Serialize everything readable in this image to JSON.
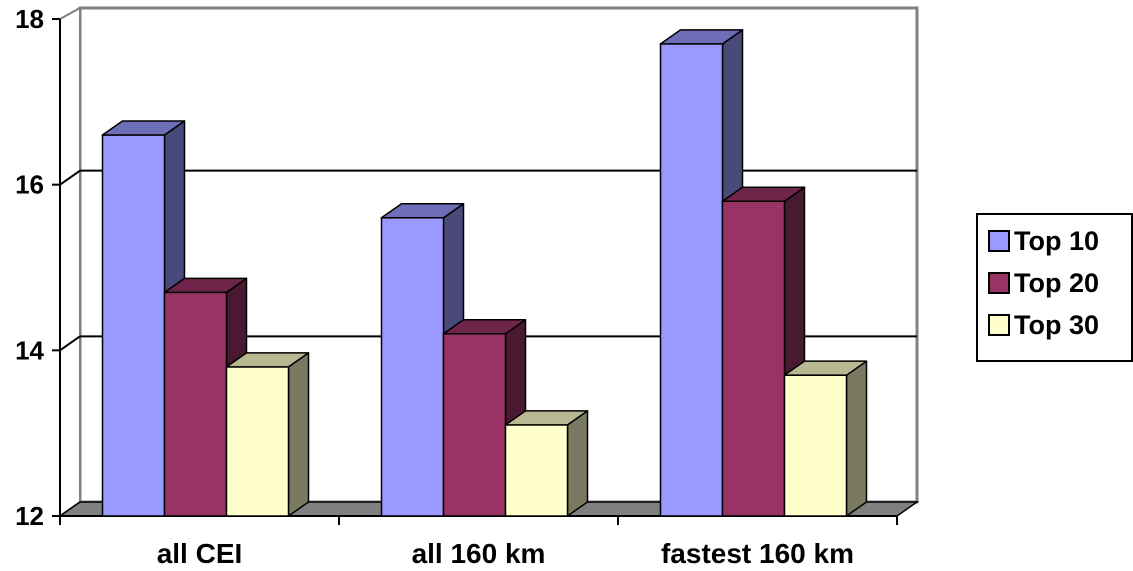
{
  "chart_data": {
    "type": "bar",
    "subtype": "3d-clustered-column",
    "title": "",
    "xlabel": "",
    "ylabel": "",
    "categories": [
      "all CEI",
      "all 160 km",
      "fastest 160 km"
    ],
    "series": [
      {
        "name": "Top 10",
        "values": [
          16.6,
          15.6,
          17.7
        ],
        "color": "#9999ff"
      },
      {
        "name": "Top 20",
        "values": [
          14.7,
          14.2,
          15.8
        ],
        "color": "#993366"
      },
      {
        "name": "Top 30",
        "values": [
          13.8,
          13.1,
          13.7
        ],
        "color": "#ffffcc"
      }
    ],
    "ylim": [
      12,
      18
    ],
    "yticks": [
      "12",
      "14",
      "16",
      "18"
    ],
    "grid": true,
    "legend_position": "right",
    "colors": {
      "wall_border": "#808080",
      "floor": "#808080",
      "gridline": "#000000"
    }
  }
}
